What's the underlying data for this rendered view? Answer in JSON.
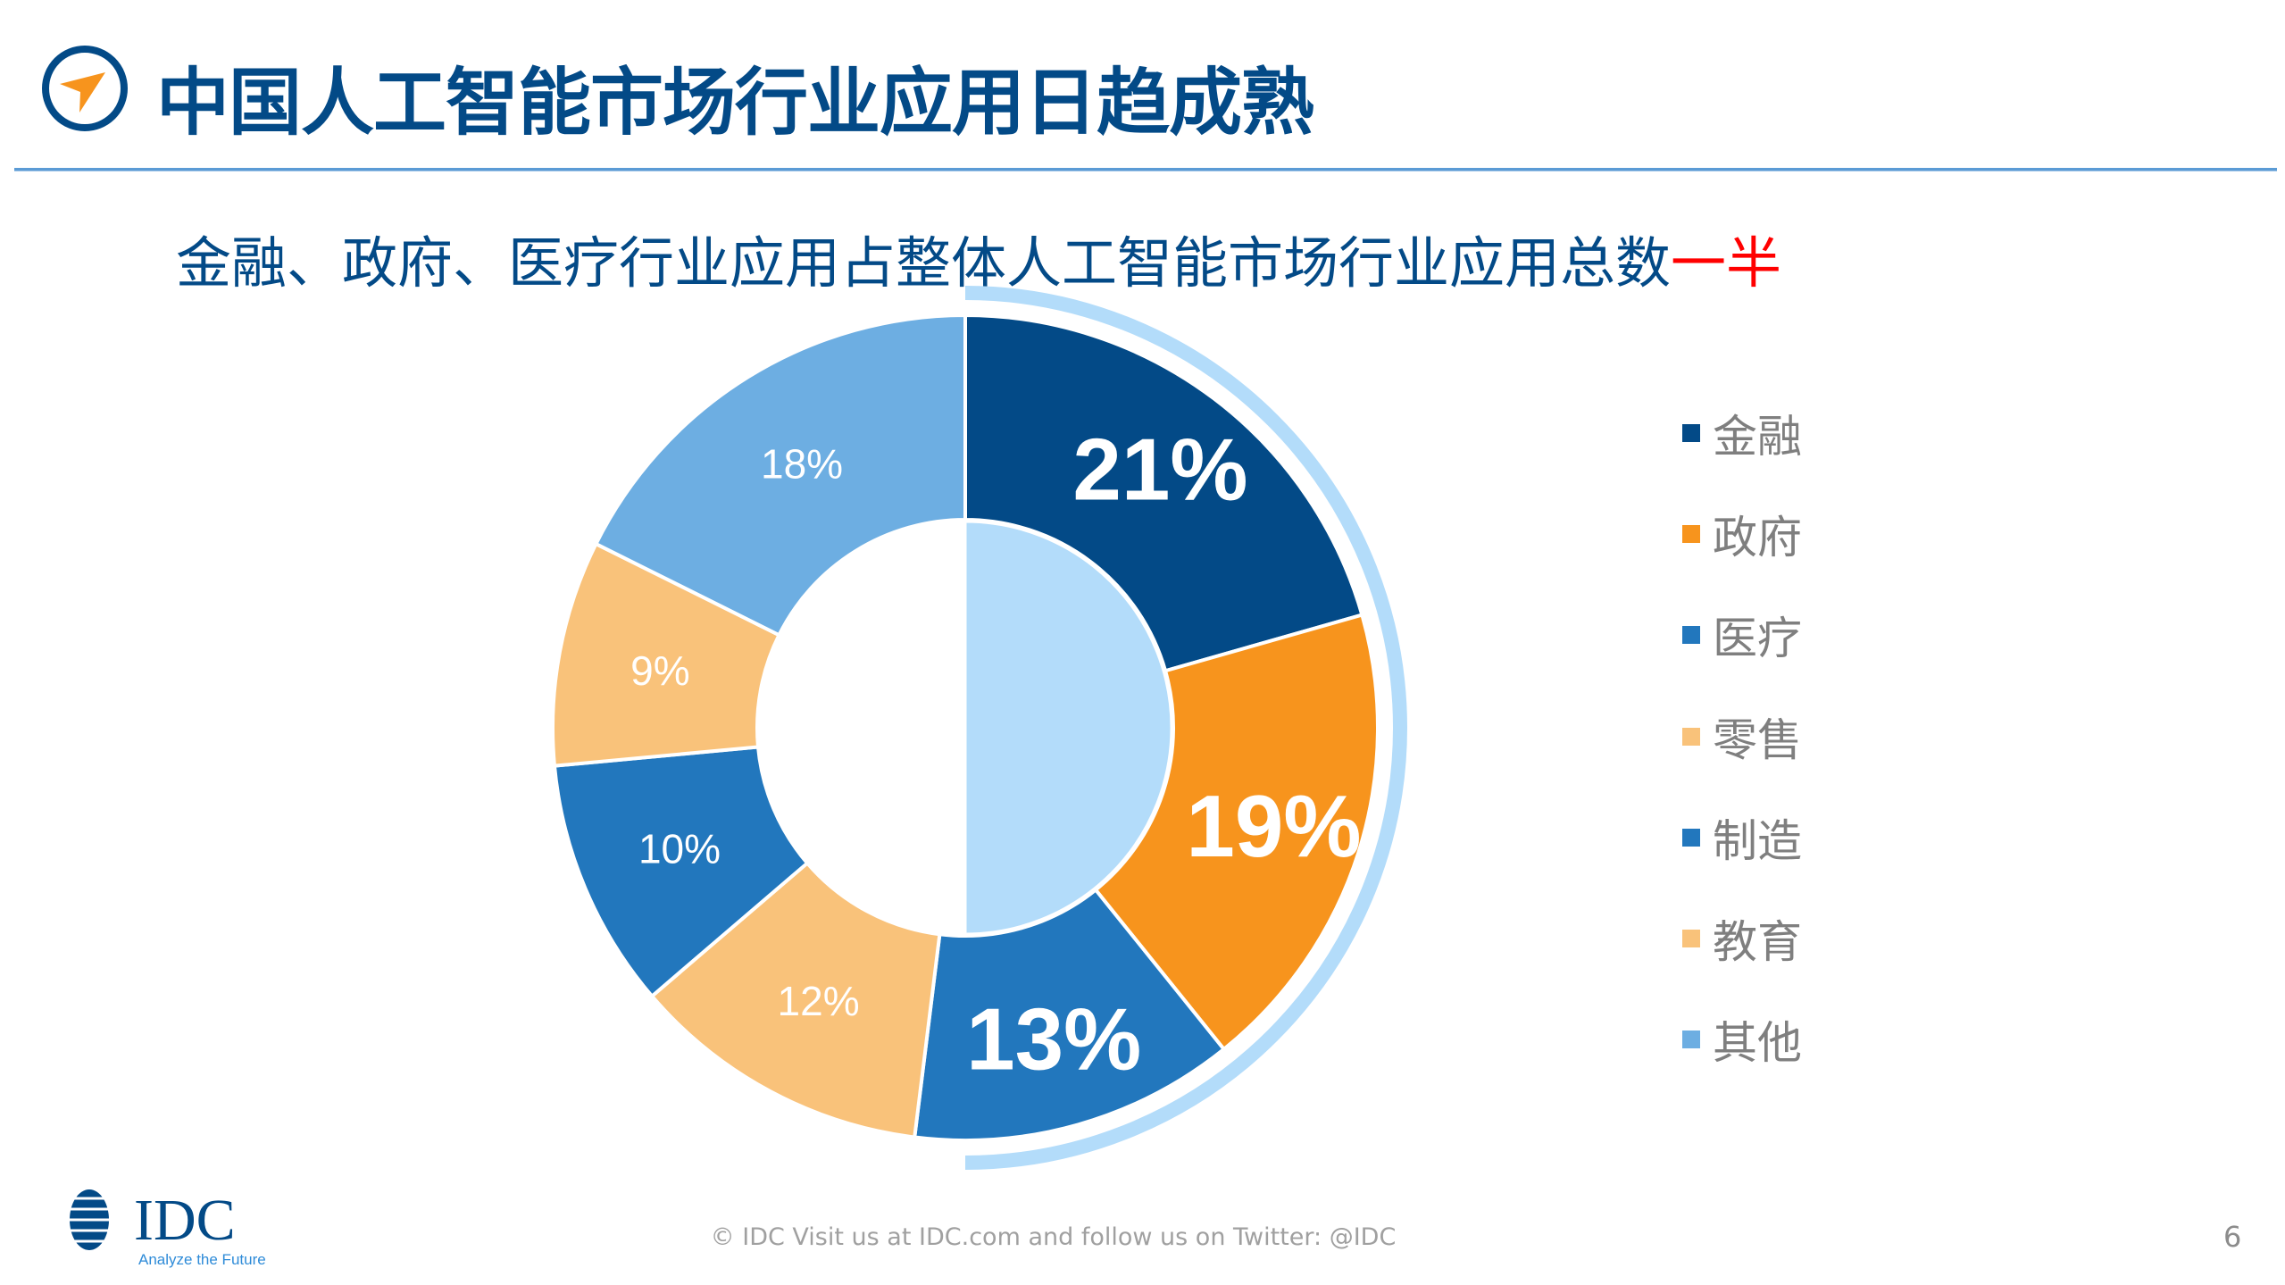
{
  "header": {
    "title": "中国人工智能市场行业应用日趋成熟",
    "logo_icon": "compass-arrow-icon"
  },
  "subtitle": {
    "text": "金融、政府、医疗行业应用占整体人工智能市场行业应用总数",
    "highlight": "一半",
    "highlight_color": "#ff0000"
  },
  "chart_data": {
    "type": "pie",
    "variant": "donut",
    "categories": [
      "金融",
      "政府",
      "医疗",
      "零售",
      "制造",
      "教育",
      "其他"
    ],
    "values": [
      21,
      19,
      13,
      12,
      10,
      9,
      18
    ],
    "data_labels": [
      "21%",
      "19%",
      "13%",
      "12%",
      "10%",
      "9%",
      "18%"
    ],
    "colors": [
      "#034a87",
      "#f7941d",
      "#2277bd",
      "#f9c27a",
      "#2277bd",
      "#f9c27a",
      "#6daee2"
    ],
    "emphasized": [
      true,
      true,
      true,
      false,
      false,
      false,
      false
    ],
    "highlight_color": "#b3dcfa",
    "legend_position": "right",
    "legend_text_color": "#7f7f7f"
  },
  "footer": {
    "text": "© IDC   Visit us at IDC.com and follow us on Twitter: @IDC",
    "page_number": "6",
    "brand": "IDC",
    "tagline": "Analyze the Future"
  }
}
